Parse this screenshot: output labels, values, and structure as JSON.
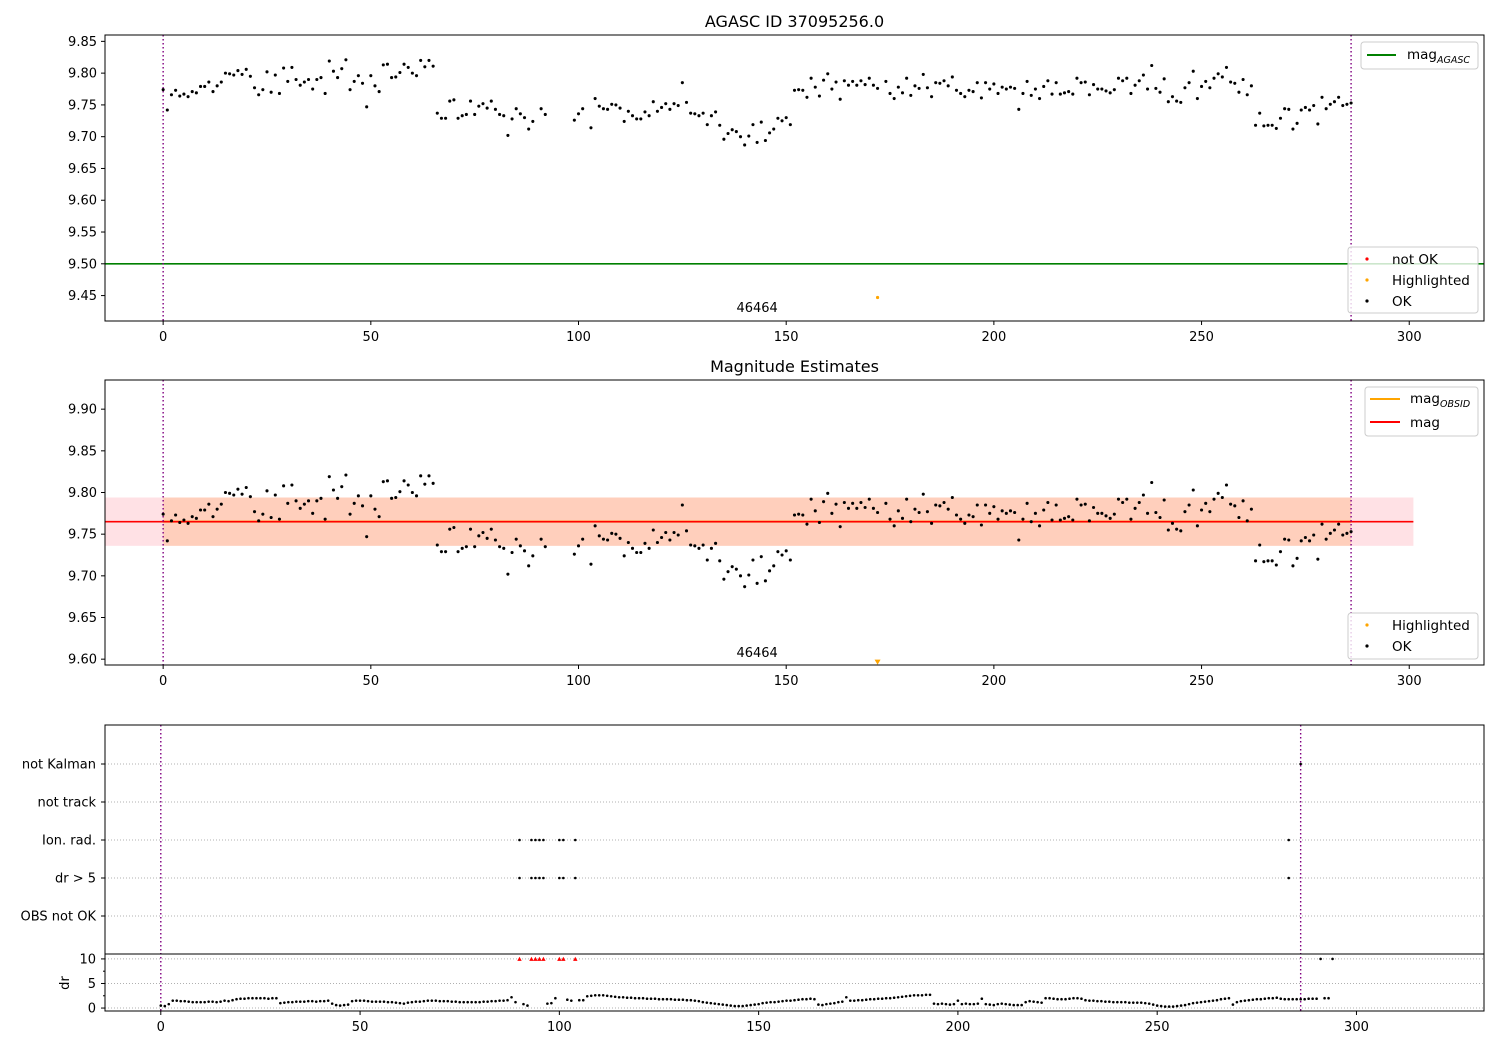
{
  "chart_data": [
    {
      "type": "scatter",
      "title": "AGASC ID 37095256.0",
      "xlim": [
        -14,
        318
      ],
      "ylim": [
        9.41,
        9.86
      ],
      "x_ticks": [
        "0",
        "50",
        "100",
        "150",
        "200",
        "250",
        "300"
      ],
      "y_ticks": [
        "9.45",
        "9.50",
        "9.55",
        "9.60",
        "9.65",
        "9.70",
        "9.75",
        "9.80",
        "9.85"
      ],
      "reference_line": {
        "name": "mag",
        "subscript": "AGASC",
        "value": 9.5,
        "color": "#008000"
      },
      "obsid_boundaries": [
        0,
        286
      ],
      "obsid_label": {
        "text": "46464",
        "x": 143
      },
      "legend_lines": [
        {
          "name": "mag",
          "subscript": "AGASC",
          "color": "#008000"
        }
      ],
      "legend_points": [
        {
          "name": "not OK",
          "color": "#ff0000"
        },
        {
          "name": "Highlighted",
          "color": "#ffa500"
        },
        {
          "name": "OK",
          "color": "#000000"
        }
      ],
      "highlighted_points": [
        {
          "x": 172,
          "y": 9.447
        }
      ]
    },
    {
      "type": "scatter",
      "title": "Magnitude Estimates",
      "xlim": [
        -14,
        318
      ],
      "ylim": [
        9.593,
        9.935
      ],
      "x_ticks": [
        "0",
        "50",
        "100",
        "150",
        "200",
        "250",
        "300"
      ],
      "y_ticks": [
        "9.60",
        "9.65",
        "9.70",
        "9.75",
        "9.80",
        "9.85",
        "9.90"
      ],
      "mag_line": {
        "name": "mag",
        "value": 9.765,
        "color": "#ff0000"
      },
      "mag_band": {
        "low": 9.736,
        "high": 9.794,
        "x_range": [
          -14,
          301
        ]
      },
      "obsid_mag": {
        "name": "mag",
        "subscript": "OBSID",
        "value": 9.765,
        "color": "#ffa500",
        "x_range": [
          0,
          286
        ]
      },
      "obsid_band": {
        "low": 9.736,
        "high": 9.794,
        "x_range": [
          0,
          286
        ]
      },
      "obsid_boundaries": [
        0,
        286
      ],
      "obsid_label": {
        "text": "46464",
        "x": 143
      },
      "legend_lines": [
        {
          "name": "mag",
          "subscript": "OBSID",
          "color": "#ffa500"
        },
        {
          "name": "mag",
          "subscript": "",
          "color": "#ff0000"
        }
      ],
      "legend_points": [
        {
          "name": "Highlighted",
          "color": "#ffa500"
        },
        {
          "name": "OK",
          "color": "#000000"
        }
      ],
      "highlighted_points": [
        {
          "x": 172,
          "y": 9.597
        }
      ]
    },
    {
      "type": "scatter",
      "title": "",
      "xlim": [
        -14,
        332
      ],
      "x_ticks": [
        "0",
        "50",
        "100",
        "150",
        "200",
        "250",
        "300"
      ],
      "flag_labels": [
        "not Kalman",
        "not track",
        "Ion. rad.",
        "dr > 5",
        "OBS not OK"
      ],
      "flags": {
        "not Kalman": [
          286
        ],
        "not track": [],
        "Ion. rad.": [
          90,
          93,
          94,
          95,
          96,
          100,
          101,
          104,
          283
        ],
        "dr > 5": [
          90,
          93,
          94,
          95,
          96,
          100,
          101,
          104,
          283
        ],
        "OBS not OK": []
      },
      "dr_ylabel": "dr",
      "dr_ticks": [
        "0",
        "5",
        "10"
      ],
      "dr_ylim": [
        -0.6,
        11
      ],
      "dr_clipped": [
        90,
        93,
        94,
        95,
        96,
        100,
        101,
        104,
        283,
        286
      ],
      "obsid_boundaries": [
        0,
        286
      ]
    }
  ],
  "series": {
    "mag_est": [
      9.774,
      9.742,
      9.766,
      9.773,
      9.764,
      9.767,
      9.763,
      9.771,
      9.769,
      9.779,
      9.779,
      9.786,
      9.771,
      9.78,
      9.786,
      9.8,
      9.799,
      9.797,
      9.804,
      9.798,
      9.806,
      9.795,
      9.777,
      9.766,
      9.774,
      9.802,
      9.77,
      9.797,
      9.768,
      9.808,
      9.787,
      9.809,
      9.79,
      9.781,
      9.786,
      9.79,
      9.775,
      9.79,
      9.793,
      9.768,
      9.819,
      9.803,
      9.793,
      9.807,
      9.821,
      9.774,
      9.787,
      9.796,
      9.784,
      9.747,
      9.796,
      9.78,
      9.771,
      9.813,
      9.814,
      9.793,
      9.794,
      9.801,
      9.814,
      9.809,
      9.8,
      9.796,
      9.82,
      9.81,
      9.82,
      9.811,
      9.737,
      9.729,
      9.729,
      9.756,
      9.758,
      9.729,
      9.733,
      9.735,
      9.756,
      9.735,
      9.748,
      9.752,
      9.745,
      9.756,
      9.743,
      9.735,
      9.733,
      9.702,
      9.728,
      9.744,
      9.736,
      9.73,
      9.712,
      9.724,
      null,
      9.744,
      9.735,
      null,
      null,
      null,
      null,
      null,
      null,
      9.726,
      9.736,
      9.744,
      null,
      9.714,
      9.76,
      9.748,
      9.744,
      9.743,
      9.751,
      9.75,
      9.745,
      9.724,
      9.74,
      9.733,
      9.728,
      9.728,
      9.739,
      9.733,
      9.755,
      9.74,
      9.746,
      9.752,
      9.743,
      9.752,
      9.749,
      9.785,
      9.754,
      9.737,
      9.736,
      9.733,
      9.737,
      9.719,
      9.733,
      9.739,
      9.718,
      9.696,
      9.705,
      9.711,
      9.708,
      9.7,
      9.687,
      9.701,
      9.719,
      9.691,
      9.723,
      9.694,
      9.706,
      9.712,
      9.729,
      9.725,
      9.73,
      9.719,
      9.773,
      9.774,
      9.773,
      9.762,
      9.792,
      9.778,
      9.764,
      9.789,
      9.799,
      9.775,
      9.786,
      9.759,
      9.788,
      9.781,
      9.787,
      9.781,
      9.788,
      9.782,
      9.792,
      9.781,
      9.776,
      null,
      9.787,
      9.768,
      9.76,
      9.778,
      9.769,
      9.792,
      9.765,
      9.78,
      9.776,
      9.798,
      9.777,
      9.763,
      9.785,
      9.784,
      9.788,
      9.78,
      9.794,
      9.773,
      9.768,
      9.763,
      9.773,
      9.771,
      9.785,
      9.761,
      9.785,
      9.775,
      9.783,
      9.768,
      9.778,
      9.775,
      9.778,
      9.776,
      9.743,
      9.768,
      9.787,
      9.765,
      9.775,
      9.76,
      9.779,
      9.788,
      9.767,
      9.785,
      9.767,
      9.769,
      9.771,
      9.767,
      9.792,
      9.785,
      9.786,
      9.766,
      9.782,
      9.775,
      9.775,
      9.772,
      9.769,
      9.774,
      9.792,
      9.788,
      9.792,
      9.768,
      9.781,
      9.788,
      9.797,
      9.775,
      9.812,
      9.776,
      9.77,
      9.791,
      9.755,
      9.763,
      9.756,
      9.754,
      9.777,
      9.785,
      9.803,
      9.76,
      9.779,
      9.787,
      9.777,
      9.792,
      9.799,
      9.794,
      9.809,
      9.786,
      9.784,
      9.77,
      9.79,
      9.766,
      9.78,
      9.718,
      9.737,
      9.717,
      9.718,
      9.718,
      9.713,
      9.729,
      9.744,
      9.743,
      9.712,
      9.721,
      9.742,
      9.746,
      9.742,
      9.749,
      9.72,
      9.762,
      9.744,
      9.751,
      9.755,
      9.762,
      9.749,
      9.751,
      9.753
    ],
    "dr": [
      0.5,
      0.4,
      0.8,
      1.5,
      1.5,
      1.4,
      1.4,
      1.3,
      1.2,
      1.2,
      1.2,
      1.2,
      1.3,
      1.3,
      1.2,
      1.3,
      1.5,
      1.4,
      1.6,
      1.8,
      1.9,
      1.9,
      2.0,
      2.0,
      2.0,
      2.0,
      2.0,
      1.9,
      2.0,
      2.0,
      1.0,
      1.1,
      1.2,
      1.2,
      1.3,
      1.3,
      1.3,
      1.4,
      1.4,
      1.3,
      1.4,
      1.4,
      1.5,
      0.9,
      0.6,
      0.5,
      0.6,
      0.7,
      1.4,
      1.5,
      1.5,
      1.5,
      1.4,
      1.3,
      1.3,
      1.3,
      1.3,
      1.2,
      1.2,
      1.1,
      1.0,
      0.9,
      1.1,
      1.2,
      1.3,
      1.3,
      1.4,
      1.5,
      1.5,
      1.5,
      1.4,
      1.4,
      1.4,
      1.3,
      1.3,
      1.2,
      1.2,
      1.2,
      1.2,
      1.2,
      1.2,
      1.3,
      1.3,
      1.4,
      1.4,
      1.5,
      1.5,
      1.6,
      2.2,
      1.2,
      10.0,
      0.8,
      0.5,
      10.0,
      10.0,
      10.0,
      10.0,
      0.9,
      1.0,
      2.0,
      10.0,
      10.0,
      1.7,
      1.5,
      10.0,
      1.6,
      1.6,
      2.4,
      2.5,
      2.6,
      2.6,
      2.6,
      2.5,
      2.4,
      2.3,
      2.2,
      2.2,
      2.1,
      2.1,
      2.0,
      2.0,
      2.0,
      1.9,
      1.9,
      1.9,
      1.8,
      1.8,
      1.8,
      1.8,
      1.7,
      1.7,
      1.7,
      1.6,
      1.6,
      1.5,
      1.4,
      1.2,
      1.1,
      1.0,
      0.9,
      0.8,
      0.7,
      0.6,
      0.5,
      0.4,
      0.4,
      0.4,
      0.5,
      0.6,
      0.7,
      0.8,
      1.0,
      1.1,
      1.2,
      1.2,
      1.3,
      1.4,
      1.5,
      1.5,
      1.6,
      1.7,
      1.8,
      1.8,
      1.9,
      1.8,
      0.7,
      0.6,
      0.8,
      0.9,
      1.0,
      1.2,
      1.3,
      2.2,
      1.5,
      1.5,
      1.6,
      1.6,
      1.7,
      1.8,
      1.8,
      1.9,
      1.9,
      2.0,
      2.0,
      2.1,
      2.2,
      2.3,
      2.4,
      2.5,
      2.6,
      2.6,
      2.6,
      2.7,
      2.7,
      0.9,
      0.8,
      0.9,
      0.8,
      0.7,
      0.8,
      1.5,
      0.8,
      0.9,
      0.8,
      0.8,
      0.9,
      1.9,
      0.8,
      0.7,
      0.6,
      0.8,
      0.9,
      0.8,
      0.7,
      0.6,
      0.6,
      0.6,
      1.2,
      1.4,
      1.3,
      1.2,
      1.1,
      2.0,
      2.0,
      1.9,
      1.8,
      1.8,
      1.8,
      1.9,
      2.0,
      2.0,
      1.9,
      1.6,
      1.5,
      1.5,
      1.4,
      1.4,
      1.3,
      1.3,
      1.2,
      1.2,
      1.2,
      1.2,
      1.1,
      1.1,
      1.1,
      1.1,
      1.0,
      0.9,
      0.7,
      0.5,
      0.4,
      0.3,
      0.3,
      0.3,
      0.4,
      0.5,
      0.6,
      0.8,
      1.0,
      1.1,
      1.2,
      1.3,
      1.4,
      1.5,
      1.6,
      1.8,
      1.9,
      2.0,
      0.7,
      1.2,
      1.4,
      1.5,
      1.6,
      1.7,
      1.8,
      1.8,
      1.9,
      2.0,
      2.0,
      2.1,
      1.9,
      1.8,
      1.8,
      1.8,
      1.8,
      1.8,
      1.8,
      1.9,
      1.9,
      1.9,
      10.0,
      2.0,
      2.0,
      10.0
    ]
  }
}
